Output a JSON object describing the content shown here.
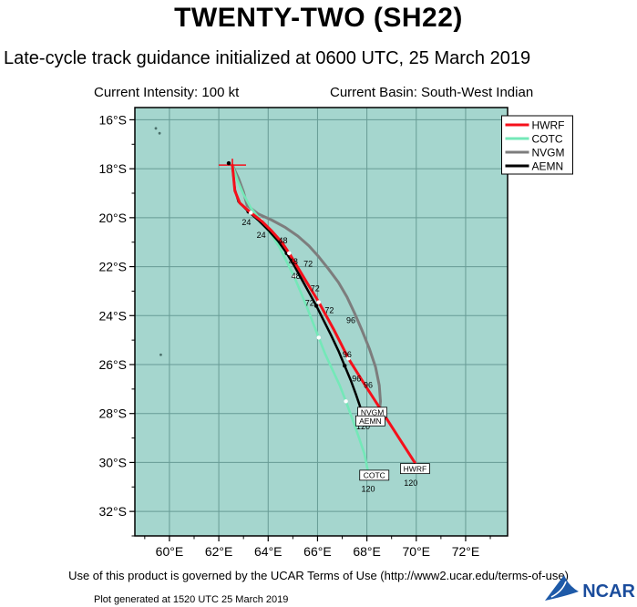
{
  "page": {
    "title": "TWENTY-TWO (SH22)",
    "subtitle": "Late-cycle track guidance initialized at 0600 UTC, 25 March 2019",
    "current_intensity": "Current Intensity: 100 kt",
    "current_basin": "Current Basin: South-West Indian",
    "footer_terms": "Use of this product is governed by the UCAR Terms of Use (http://www2.ucar.edu/terms-of-use)",
    "footer_generated": "Plot generated at 1520 UTC  25 March 2019",
    "logo_text": "NCAR"
  },
  "chart_data": {
    "type": "line",
    "title": "TWENTY-TWO (SH22) late-cycle track guidance",
    "storm": "SH22",
    "init_time": "0600 UTC, 25 March 2019",
    "current_intensity_kt": 100,
    "basin": "South-West Indian",
    "plot_bg": "#A5D6CE",
    "grid_color": "#679B95",
    "x_axis": {
      "suffix": "°E",
      "ticks": [
        60,
        62,
        64,
        66,
        68,
        70,
        72
      ],
      "range": [
        58.6,
        73.7
      ],
      "minor_step": 1
    },
    "y_axis": {
      "suffix": "°S",
      "ticks": [
        16,
        18,
        20,
        22,
        24,
        26,
        28,
        30,
        32
      ],
      "range": [
        15.5,
        33.0
      ],
      "minor_step": 1
    },
    "hour_interval_h": 6,
    "forecast_hours_labeled": [
      24,
      48,
      72,
      96,
      120
    ],
    "legend_position": "top-right",
    "start": {
      "lon": 62.55,
      "lat": 17.85
    },
    "series": [
      {
        "name": "HWRF",
        "color": "#F5101B",
        "width": 3,
        "marker": "#FFFFFF",
        "points": [
          [
            62.55,
            17.85
          ],
          [
            62.6,
            18.35
          ],
          [
            62.65,
            18.9
          ],
          [
            62.85,
            19.4
          ],
          [
            63.3,
            19.8
          ],
          [
            63.75,
            20.15
          ],
          [
            64.15,
            20.55
          ],
          [
            64.55,
            21.0
          ],
          [
            64.85,
            21.45
          ],
          [
            65.15,
            21.95
          ],
          [
            65.45,
            22.45
          ],
          [
            65.75,
            22.95
          ],
          [
            66.05,
            23.45
          ],
          [
            66.35,
            24.0
          ],
          [
            66.65,
            24.55
          ],
          [
            66.95,
            25.15
          ],
          [
            67.25,
            25.75
          ],
          [
            67.9,
            26.8
          ],
          [
            68.6,
            27.9
          ],
          [
            69.3,
            29.0
          ],
          [
            70.0,
            30.1
          ]
        ]
      },
      {
        "name": "COTC",
        "color": "#74E8B8",
        "width": 2.6,
        "marker": "#FFFFFF",
        "points": [
          [
            62.55,
            17.85
          ],
          [
            62.75,
            18.45
          ],
          [
            63.0,
            19.05
          ],
          [
            63.3,
            19.6
          ],
          [
            63.7,
            20.1
          ],
          [
            64.1,
            20.65
          ],
          [
            64.45,
            21.2
          ],
          [
            64.75,
            21.8
          ],
          [
            65.05,
            22.4
          ],
          [
            65.3,
            23.0
          ],
          [
            65.55,
            23.6
          ],
          [
            65.8,
            24.25
          ],
          [
            66.05,
            24.9
          ],
          [
            66.3,
            25.55
          ],
          [
            66.6,
            26.2
          ],
          [
            66.9,
            26.85
          ],
          [
            67.15,
            27.5
          ],
          [
            67.4,
            28.2
          ],
          [
            67.65,
            28.9
          ],
          [
            67.9,
            29.65
          ],
          [
            68.05,
            30.4
          ]
        ]
      },
      {
        "name": "NVGM",
        "color": "#7D7D7D",
        "width": 3,
        "marker": null,
        "points": [
          [
            62.55,
            17.85
          ],
          [
            62.8,
            18.4
          ],
          [
            63.0,
            18.95
          ],
          [
            63.15,
            19.5
          ],
          [
            63.6,
            19.85
          ],
          [
            64.15,
            20.1
          ],
          [
            64.7,
            20.4
          ],
          [
            65.2,
            20.75
          ],
          [
            65.65,
            21.15
          ],
          [
            66.05,
            21.6
          ],
          [
            66.45,
            22.1
          ],
          [
            66.85,
            22.65
          ],
          [
            67.2,
            23.25
          ],
          [
            67.5,
            23.9
          ],
          [
            67.8,
            24.6
          ],
          [
            68.1,
            25.35
          ],
          [
            68.35,
            26.1
          ],
          [
            68.5,
            26.85
          ],
          [
            68.55,
            27.5
          ],
          [
            68.5,
            28.0
          ],
          [
            68.35,
            28.35
          ]
        ]
      },
      {
        "name": "AEMN",
        "color": "#000000",
        "width": 2.5,
        "marker": "#000000",
        "points": [
          [
            62.55,
            17.85
          ],
          [
            62.6,
            18.35
          ],
          [
            62.65,
            18.85
          ],
          [
            62.8,
            19.35
          ],
          [
            63.2,
            19.75
          ],
          [
            63.6,
            20.1
          ],
          [
            64.0,
            20.5
          ],
          [
            64.4,
            20.95
          ],
          [
            64.75,
            21.45
          ],
          [
            65.05,
            21.95
          ],
          [
            65.35,
            22.5
          ],
          [
            65.65,
            23.05
          ],
          [
            65.95,
            23.6
          ],
          [
            66.25,
            24.2
          ],
          [
            66.55,
            24.8
          ],
          [
            66.85,
            25.45
          ],
          [
            67.1,
            26.05
          ],
          [
            67.35,
            26.65
          ],
          [
            67.55,
            27.2
          ],
          [
            67.72,
            27.7
          ],
          [
            67.85,
            28.2
          ]
        ]
      }
    ],
    "hour_labels": [
      {
        "text": "24",
        "lon": 63.12,
        "lat": 20.3
      },
      {
        "text": "24",
        "lon": 63.72,
        "lat": 20.82
      },
      {
        "text": "48",
        "lon": 64.6,
        "lat": 21.05
      },
      {
        "text": "48",
        "lon": 65.02,
        "lat": 21.9
      },
      {
        "text": "72",
        "lon": 65.62,
        "lat": 22.0
      },
      {
        "text": "48",
        "lon": 65.12,
        "lat": 22.5
      },
      {
        "text": "72",
        "lon": 65.9,
        "lat": 23.0
      },
      {
        "text": "72",
        "lon": 65.68,
        "lat": 23.6
      },
      {
        "text": "72",
        "lon": 66.48,
        "lat": 23.9
      },
      {
        "text": "96",
        "lon": 67.35,
        "lat": 24.3
      },
      {
        "text": "96",
        "lon": 67.2,
        "lat": 25.7
      },
      {
        "text": "96",
        "lon": 67.58,
        "lat": 26.68
      },
      {
        "text": "96",
        "lon": 68.05,
        "lat": 26.95
      },
      {
        "text": "120",
        "lon": 67.85,
        "lat": 28.65
      },
      {
        "text": "120",
        "lon": 68.05,
        "lat": 31.2
      },
      {
        "text": "120",
        "lon": 69.78,
        "lat": 30.95
      }
    ],
    "model_boxes": [
      {
        "text": "NVGM",
        "lon": 68.22,
        "lat": 27.95
      },
      {
        "text": "AEMN",
        "lon": 68.14,
        "lat": 28.3
      },
      {
        "text": "COTC",
        "lon": 68.3,
        "lat": 30.52
      },
      {
        "text": "HWRF",
        "lon": 69.95,
        "lat": 30.25
      }
    ],
    "islands": [
      [
        59.45,
        16.35
      ],
      [
        59.6,
        16.55
      ],
      [
        59.65,
        25.6
      ]
    ]
  }
}
